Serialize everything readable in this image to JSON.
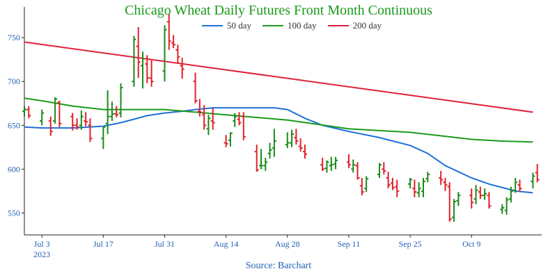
{
  "chart_data": {
    "type": "ohlc",
    "title": "Chicago Wheat Daily Futures Front Month Continuous",
    "source": "Source: Barchart",
    "xlabel": "",
    "ylabel": "",
    "ylim": [
      525,
      785
    ],
    "yticks": [
      550,
      600,
      650,
      700,
      750
    ],
    "x_range": [
      "2023-06-29",
      "2023-10-25"
    ],
    "x_ticks": [
      {
        "date": "2023-07-03",
        "label": "Jul 3",
        "sub": "2023"
      },
      {
        "date": "2023-07-17",
        "label": "Jul 17",
        "sub": ""
      },
      {
        "date": "2023-07-31",
        "label": "Jul 31",
        "sub": ""
      },
      {
        "date": "2023-08-14",
        "label": "Aug 14",
        "sub": ""
      },
      {
        "date": "2023-08-28",
        "label": "Aug 28",
        "sub": ""
      },
      {
        "date": "2023-09-11",
        "label": "Sep 11",
        "sub": ""
      },
      {
        "date": "2023-09-25",
        "label": "Sep 25",
        "sub": ""
      },
      {
        "date": "2023-10-09",
        "label": "Oct 9",
        "sub": ""
      }
    ],
    "grid": false,
    "legend_position": "top",
    "up_color": "#1a8a1a",
    "down_color": "#e0202a",
    "moving_averages": [
      {
        "name": "50 day",
        "color": "#1e6fd9",
        "points": [
          [
            "2023-06-29",
            648
          ],
          [
            "2023-07-03",
            647
          ],
          [
            "2023-07-10",
            647
          ],
          [
            "2023-07-17",
            649
          ],
          [
            "2023-07-21",
            653
          ],
          [
            "2023-07-24",
            657
          ],
          [
            "2023-07-27",
            661
          ],
          [
            "2023-07-31",
            664
          ],
          [
            "2023-08-04",
            666
          ],
          [
            "2023-08-07",
            668
          ],
          [
            "2023-08-11",
            670
          ],
          [
            "2023-08-18",
            670
          ],
          [
            "2023-08-25",
            670
          ],
          [
            "2023-08-28",
            668
          ],
          [
            "2023-09-01",
            658
          ],
          [
            "2023-09-05",
            650
          ],
          [
            "2023-09-11",
            643
          ],
          [
            "2023-09-18",
            636
          ],
          [
            "2023-09-25",
            627
          ],
          [
            "2023-09-29",
            618
          ],
          [
            "2023-10-03",
            604
          ],
          [
            "2023-10-09",
            590
          ],
          [
            "2023-10-13",
            583
          ],
          [
            "2023-10-19",
            575
          ],
          [
            "2023-10-23",
            573
          ]
        ]
      },
      {
        "name": "100 day",
        "color": "#1a9a1a",
        "points": [
          [
            "2023-06-29",
            681
          ],
          [
            "2023-07-03",
            678
          ],
          [
            "2023-07-10",
            672
          ],
          [
            "2023-07-17",
            668
          ],
          [
            "2023-07-24",
            668
          ],
          [
            "2023-07-31",
            668
          ],
          [
            "2023-08-07",
            665
          ],
          [
            "2023-08-14",
            662
          ],
          [
            "2023-08-21",
            659
          ],
          [
            "2023-08-28",
            656
          ],
          [
            "2023-09-04",
            651
          ],
          [
            "2023-09-11",
            646
          ],
          [
            "2023-09-18",
            644
          ],
          [
            "2023-09-25",
            642
          ],
          [
            "2023-10-02",
            638
          ],
          [
            "2023-10-09",
            634
          ],
          [
            "2023-10-16",
            632
          ],
          [
            "2023-10-23",
            631
          ]
        ]
      },
      {
        "name": "200 day",
        "color": "#e0203a",
        "points": [
          [
            "2023-06-29",
            745
          ],
          [
            "2023-10-23",
            665
          ]
        ]
      }
    ],
    "ohlc": [
      [
        "2023-06-29",
        666,
        672,
        660,
        668
      ],
      [
        "2023-06-30",
        668,
        672,
        658,
        661
      ],
      [
        "2023-07-03",
        655,
        668,
        650,
        664
      ],
      [
        "2023-07-05",
        655,
        660,
        638,
        643
      ],
      [
        "2023-07-06",
        655,
        682,
        652,
        680
      ],
      [
        "2023-07-07",
        676,
        678,
        648,
        652
      ],
      [
        "2023-07-10",
        660,
        664,
        644,
        650
      ],
      [
        "2023-07-11",
        650,
        658,
        645,
        648
      ],
      [
        "2023-07-12",
        650,
        667,
        645,
        660
      ],
      [
        "2023-07-13",
        655,
        665,
        649,
        654
      ],
      [
        "2023-07-14",
        650,
        658,
        631,
        635
      ],
      [
        "2023-07-17",
        635,
        648,
        623,
        648
      ],
      [
        "2023-07-18",
        652,
        690,
        640,
        660
      ],
      [
        "2023-07-19",
        660,
        677,
        655,
        663
      ],
      [
        "2023-07-20",
        663,
        672,
        659,
        662
      ],
      [
        "2023-07-21",
        664,
        698,
        659,
        693
      ],
      [
        "2023-07-24",
        700,
        752,
        694,
        748
      ],
      [
        "2023-07-25",
        740,
        762,
        704,
        722
      ],
      [
        "2023-07-26",
        718,
        734,
        692,
        726
      ],
      [
        "2023-07-27",
        720,
        730,
        698,
        704
      ],
      [
        "2023-07-28",
        704,
        724,
        694,
        700
      ],
      [
        "2023-07-31",
        712,
        764,
        700,
        759
      ],
      [
        "2023-08-01",
        768,
        777,
        736,
        746
      ],
      [
        "2023-08-02",
        744,
        753,
        738,
        742
      ],
      [
        "2023-08-03",
        736,
        742,
        720,
        728
      ],
      [
        "2023-08-04",
        718,
        727,
        703,
        714
      ],
      [
        "2023-08-07",
        700,
        710,
        675,
        678
      ],
      [
        "2023-08-08",
        666,
        680,
        660,
        665
      ],
      [
        "2023-08-09",
        662,
        673,
        645,
        650
      ],
      [
        "2023-08-10",
        646,
        662,
        639,
        658
      ],
      [
        "2023-08-11",
        655,
        670,
        645,
        653
      ],
      [
        "2023-08-14",
        630,
        639,
        625,
        629
      ],
      [
        "2023-08-15",
        633,
        642,
        626,
        641
      ],
      [
        "2023-08-16",
        655,
        664,
        648,
        660
      ],
      [
        "2023-08-17",
        657,
        665,
        650,
        653
      ],
      [
        "2023-08-18",
        660,
        665,
        633,
        637
      ],
      [
        "2023-08-21",
        620,
        628,
        597,
        599
      ],
      [
        "2023-08-22",
        604,
        623,
        600,
        604
      ],
      [
        "2023-08-23",
        604,
        613,
        598,
        608
      ],
      [
        "2023-08-24",
        618,
        630,
        612,
        622
      ],
      [
        "2023-08-25",
        624,
        646,
        614,
        632
      ],
      [
        "2023-08-28",
        628,
        642,
        624,
        630
      ],
      [
        "2023-08-29",
        630,
        645,
        625,
        640
      ],
      [
        "2023-08-30",
        636,
        646,
        628,
        632
      ],
      [
        "2023-08-31",
        626,
        635,
        620,
        624
      ],
      [
        "2023-09-01",
        620,
        628,
        612,
        617
      ],
      [
        "2023-09-05",
        605,
        613,
        598,
        600
      ],
      [
        "2023-09-06",
        601,
        610,
        596,
        608
      ],
      [
        "2023-09-07",
        604,
        614,
        598,
        605
      ],
      [
        "2023-09-08",
        606,
        614,
        600,
        610
      ],
      [
        "2023-09-11",
        608,
        617,
        601,
        605
      ],
      [
        "2023-09-12",
        600,
        611,
        596,
        605
      ],
      [
        "2023-09-13",
        604,
        608,
        588,
        590
      ],
      [
        "2023-09-14",
        581,
        590,
        570,
        574
      ],
      [
        "2023-09-15",
        578,
        592,
        574,
        589
      ],
      [
        "2023-09-18",
        594,
        607,
        590,
        605
      ],
      [
        "2023-09-19",
        600,
        608,
        594,
        598
      ],
      [
        "2023-09-20",
        590,
        597,
        578,
        582
      ],
      [
        "2023-09-21",
        584,
        590,
        576,
        579
      ],
      [
        "2023-09-22",
        580,
        588,
        568,
        575
      ],
      [
        "2023-09-25",
        583,
        590,
        578,
        588
      ],
      [
        "2023-09-26",
        578,
        588,
        568,
        574
      ],
      [
        "2023-09-27",
        573,
        585,
        568,
        578
      ],
      [
        "2023-09-28",
        575,
        590,
        568,
        586
      ],
      [
        "2023-09-29",
        589,
        597,
        585,
        594
      ],
      [
        "2023-10-02",
        590,
        598,
        582,
        588
      ],
      [
        "2023-10-03",
        585,
        590,
        575,
        582
      ],
      [
        "2023-10-04",
        580,
        585,
        540,
        543
      ],
      [
        "2023-10-05",
        545,
        566,
        540,
        563
      ],
      [
        "2023-10-06",
        564,
        574,
        558,
        570
      ],
      [
        "2023-10-09",
        570,
        578,
        555,
        562
      ],
      [
        "2023-10-10",
        566,
        582,
        560,
        576
      ],
      [
        "2023-10-11",
        574,
        580,
        566,
        570
      ],
      [
        "2023-10-12",
        570,
        578,
        565,
        572
      ],
      [
        "2023-10-13",
        570,
        574,
        555,
        558
      ],
      [
        "2023-10-16",
        554,
        560,
        549,
        556
      ],
      [
        "2023-10-17",
        553,
        568,
        548,
        565
      ],
      [
        "2023-10-18",
        566,
        580,
        562,
        575
      ],
      [
        "2023-10-19",
        576,
        590,
        573,
        585
      ],
      [
        "2023-10-20",
        582,
        588,
        574,
        578
      ],
      [
        "2023-10-23",
        586,
        596,
        578,
        592
      ],
      [
        "2023-10-24",
        596,
        606,
        585,
        588
      ]
    ]
  }
}
